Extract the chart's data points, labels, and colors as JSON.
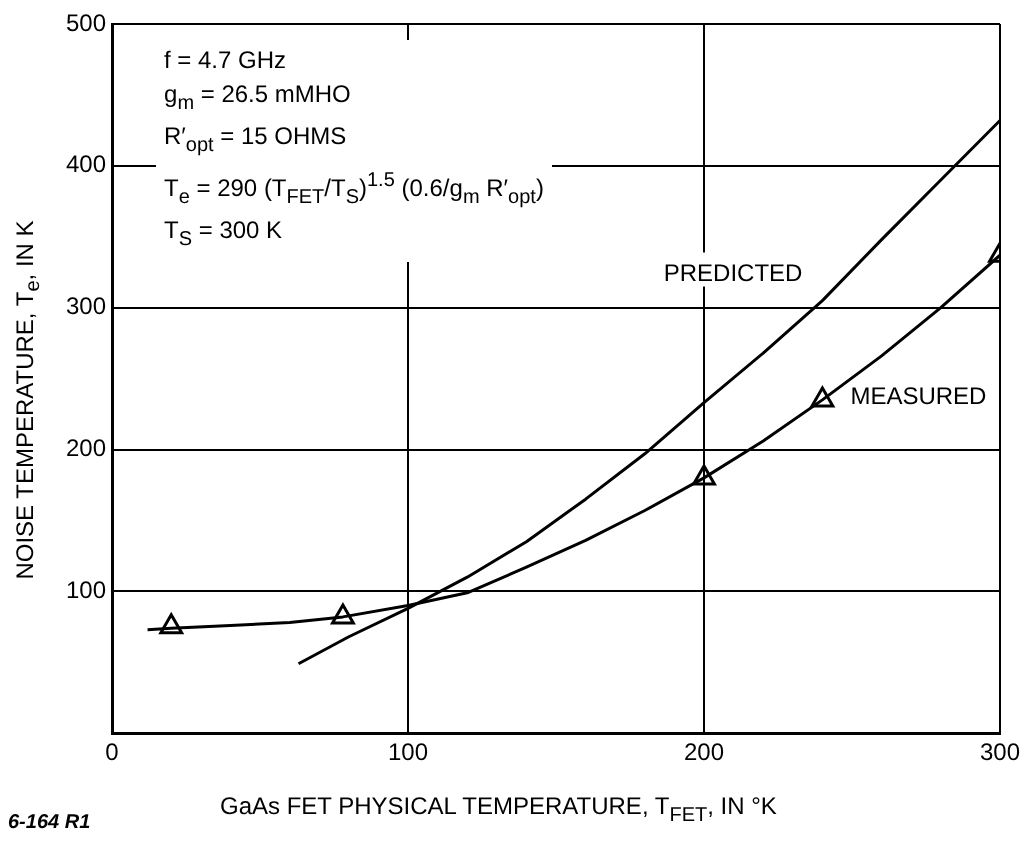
{
  "chart_data": {
    "type": "line",
    "xlabel": "GaAs FET PHYSICAL TEMPERATURE, T$_{FET}$, IN °K",
    "ylabel": "NOISE TEMPERATURE, T$_{e}$, IN K",
    "xlim": [
      0,
      300
    ],
    "xticks": [
      0,
      100,
      200,
      300
    ],
    "ylim": [
      0,
      500
    ],
    "yticks": [
      {
        "value": 0,
        "label": null
      },
      100,
      200,
      300,
      400,
      500
    ],
    "grid": true,
    "legend": false,
    "series": [
      {
        "name": "PREDICTED",
        "color": "#000000",
        "x": [
          63,
          80,
          100,
          120,
          140,
          160,
          180,
          200,
          220,
          240,
          260,
          280,
          300
        ],
        "values": [
          49,
          68,
          88,
          110,
          135,
          165,
          197,
          233,
          268,
          305,
          348,
          390,
          432
        ]
      },
      {
        "name": "MEASURED",
        "color": "#000000",
        "x": [
          12,
          20,
          40,
          60,
          78,
          100,
          120,
          140,
          160,
          180,
          200,
          220,
          240,
          260,
          280,
          300
        ],
        "values": [
          73,
          74,
          76,
          78,
          82,
          90,
          99,
          117,
          136,
          157,
          180,
          206,
          235,
          266,
          300,
          337
        ]
      },
      {
        "type": "scatter",
        "marker": "triangle",
        "color": "#000000",
        "x": [
          20,
          78,
          200,
          240,
          300
        ],
        "values": [
          75,
          82,
          180,
          235,
          337
        ]
      }
    ],
    "annotations": [
      "f = 4.7 GHz",
      "g$_{m}$ = 26.5 mMHO",
      "R′$_{opt}$ = 15 OHMS",
      "T$_{e}$ = 290 (T$_{FET}$/T$_{S}$)$^{1.5}$ (0.6/g$_{m}$ R′$_{opt}$)",
      "T$_{S}$ = 300 K",
      "6-164 R1"
    ]
  }
}
